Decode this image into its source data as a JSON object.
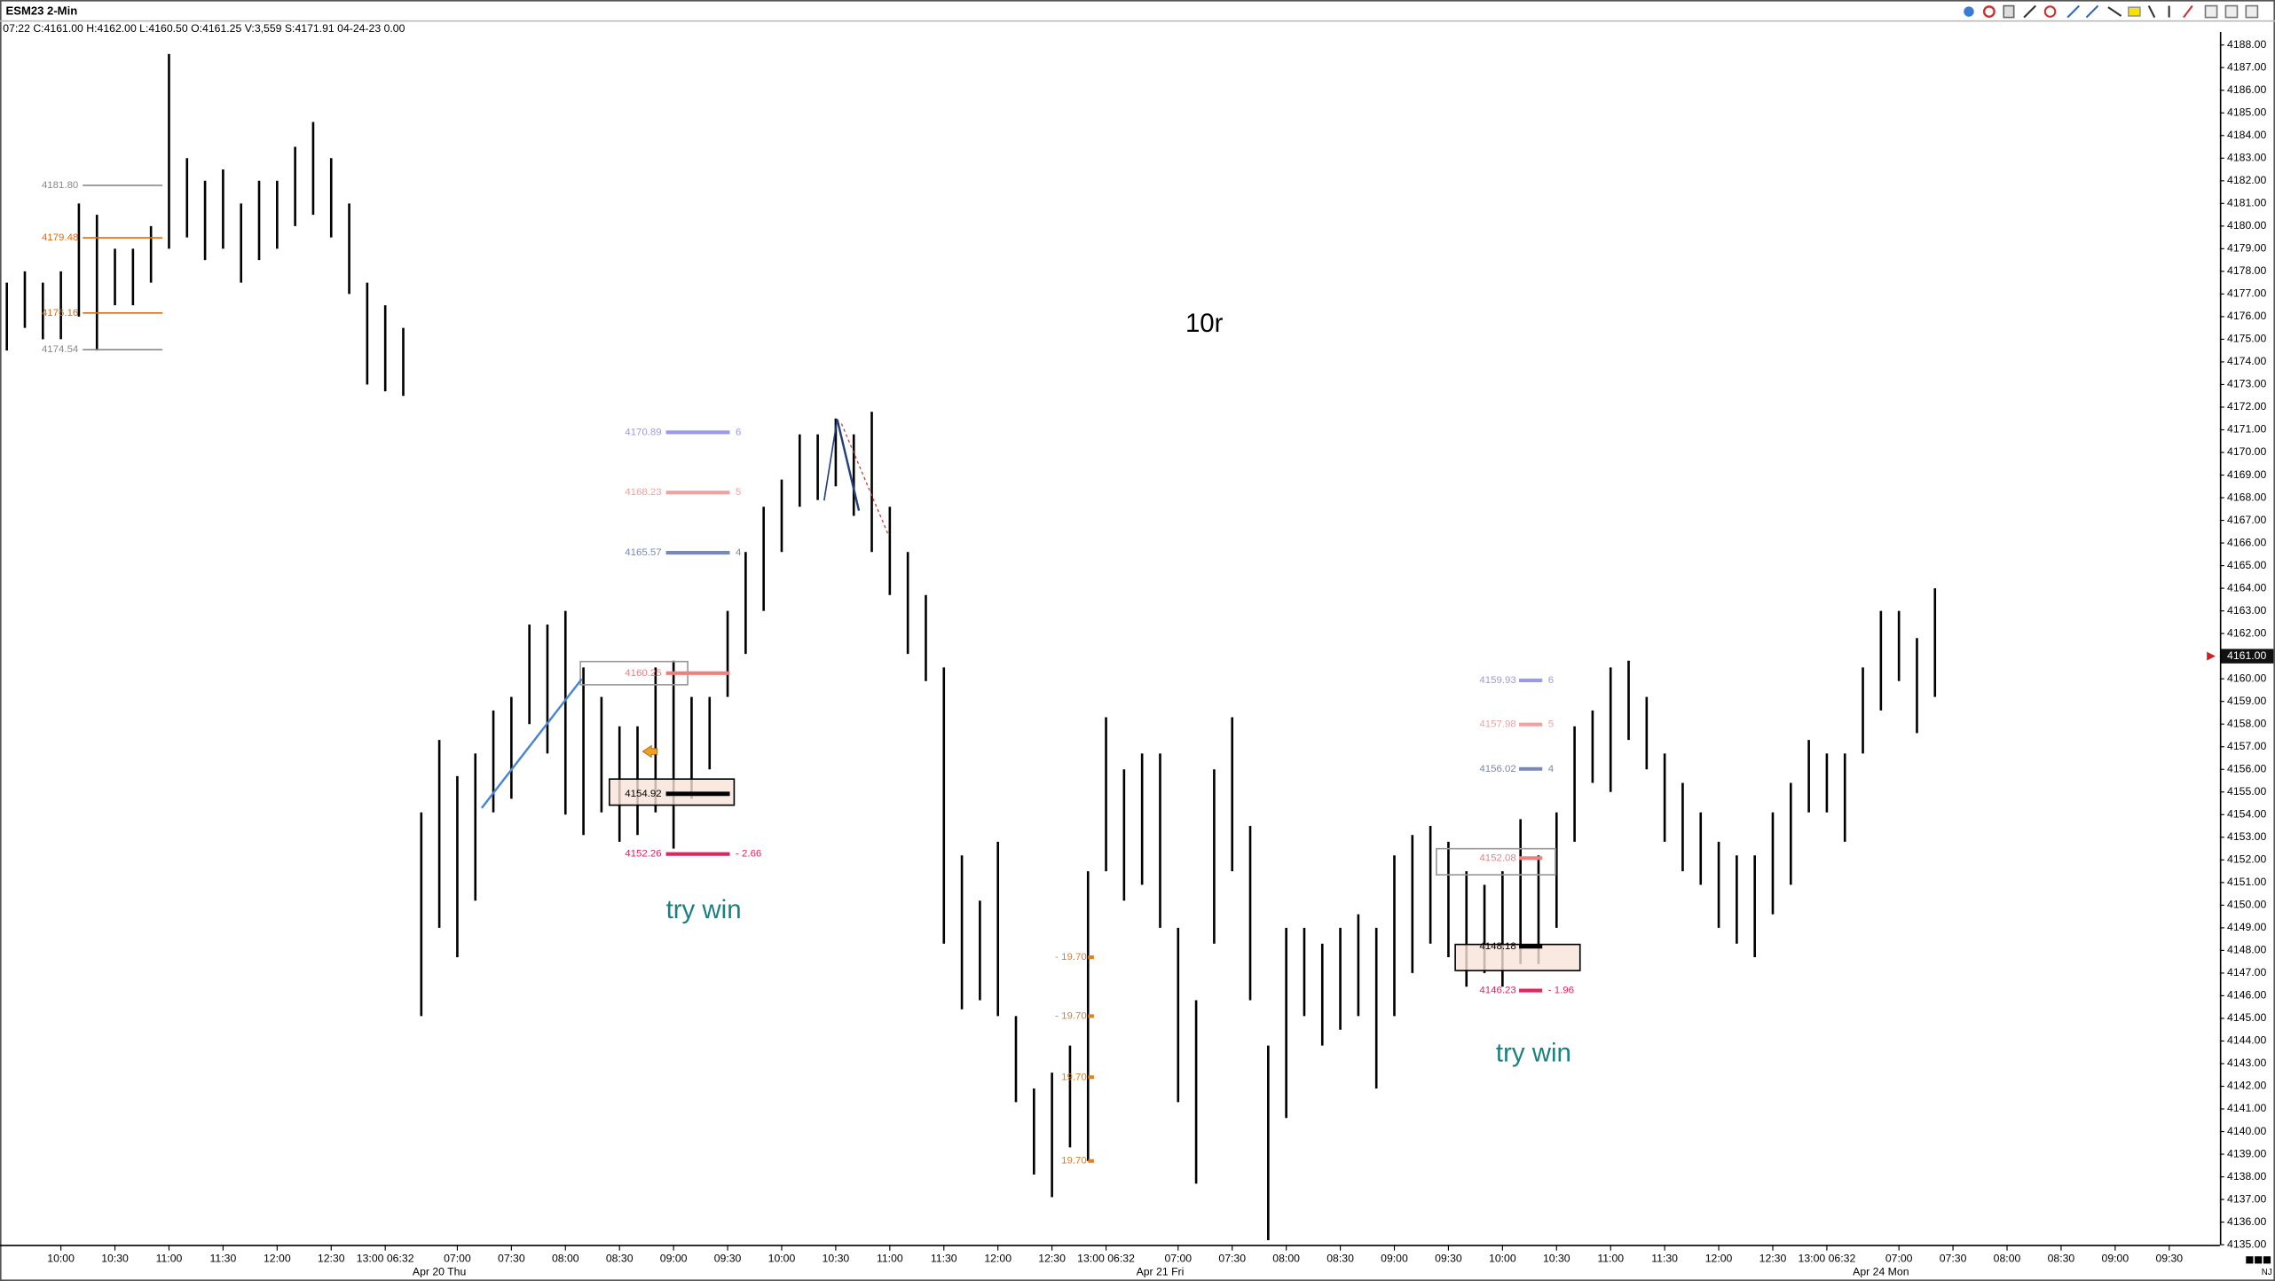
{
  "chart_data": {
    "type": "range_bar",
    "title": "ESM23 2-Min",
    "subtitle": "07:22 C:4161.00 H:4162.00 L:4160.50 O:4161.25 V:3,559 S:4171.91 04-24-23 0.00",
    "categories": [
      null,
      null,
      null,
      "10:00",
      null,
      null,
      "10:30",
      null,
      null,
      "11:00",
      null,
      null,
      "11:30",
      null,
      null,
      "12:00",
      null,
      null,
      "12:30",
      null,
      null,
      "13:00 06:32",
      null,
      null,
      null,
      "07:00",
      null,
      null,
      "07:30",
      null,
      null,
      "08:00",
      null,
      null,
      "08:30",
      null,
      null,
      "09:00",
      null,
      null,
      "09:30",
      null,
      null,
      "10:00",
      null,
      null,
      "10:30",
      null,
      null,
      "11:00",
      null,
      null,
      "11:30",
      null,
      null,
      "12:00",
      null,
      null,
      "12:30",
      null,
      null,
      "13:00 06:32",
      null,
      null,
      null,
      "07:00",
      null,
      null,
      "07:30",
      null,
      null,
      "08:00",
      null,
      null,
      "08:30",
      null,
      null,
      "09:00",
      null,
      null,
      "09:30",
      null,
      null,
      "10:00",
      null,
      null,
      "10:30",
      null,
      null,
      "11:00",
      null,
      null,
      "11:30",
      null,
      null,
      "12:00",
      null,
      null,
      "12:30",
      null,
      null,
      "13:00 06:32",
      null,
      null,
      null,
      "07:00",
      null,
      null,
      "07:30",
      null,
      null,
      "08:00",
      null,
      null,
      "08:30",
      null,
      null,
      "09:00",
      null,
      null,
      "09:30",
      null
    ],
    "day_labels": [
      "Apr 20 Thu",
      "Apr 21 Fri",
      "Apr 24 Mon"
    ],
    "high": [
      4177.5,
      4178,
      4177.5,
      4178,
      4181,
      4180.5,
      4179,
      4179,
      4180,
      4187.6,
      4183,
      4182,
      4182.5,
      4181,
      4182,
      4182,
      4183.5,
      4184.6,
      4183,
      4181,
      4177.5,
      4176.5,
      4175.5,
      4154.1,
      4157.3,
      4155.7,
      4156.7,
      4158.6,
      4159.2,
      4162.4,
      4162.4,
      4163,
      4160.5,
      4159.2,
      4157.9,
      4157.9,
      4160.5,
      4160.8,
      4159.2,
      4159.2,
      4163,
      4165.6,
      4167.6,
      4168.8,
      4170.8,
      4170.8,
      4171.5,
      4170.8,
      4171.8,
      4167.6,
      4165.6,
      4163.7,
      4160.5,
      4152.2,
      4150.2,
      4152.8,
      4145.1,
      4141.9,
      4142.6,
      4143.8,
      4151.5,
      4158.3,
      4156,
      4156.7,
      4156.7,
      4149,
      4145.8,
      4156,
      4158.3,
      4153.5,
      4143.8,
      4149,
      4149,
      4148.3,
      4149,
      4149.6,
      4149,
      4152.2,
      4153.1,
      4153.5,
      4152.8,
      4151.5,
      4150.9,
      4151.5,
      4153.8,
      4152.2,
      4154.1,
      4157.9,
      4158.6,
      4160.5,
      4160.8,
      4159.2,
      4156.7,
      4155.4,
      4154.1,
      4152.8,
      4152.2,
      4152.2,
      4154.1,
      4155.4,
      4157.3,
      4156.7,
      4156.7,
      4160.5,
      4163,
      4163,
      4161.8,
      4164,
      null,
      null,
      null,
      null,
      null,
      null,
      null,
      null,
      null,
      null,
      null,
      null,
      null,
      null
    ],
    "low": [
      4174.5,
      4175.5,
      4175,
      4175,
      4176,
      4174.5,
      4176.5,
      4176.5,
      4177.5,
      4179,
      4179.5,
      4178.5,
      4179,
      4177.5,
      4178.5,
      4179,
      4180,
      4180.5,
      4179.5,
      4177,
      4173,
      4172.7,
      4172.5,
      4145.1,
      4149,
      4147.7,
      4150.2,
      4154.1,
      4154.7,
      4158,
      4156.7,
      4154,
      4153.1,
      4154.1,
      4152.8,
      4153.1,
      4154.1,
      4152.5,
      4154.7,
      4156,
      4159.2,
      4161.1,
      4163,
      4165.6,
      4167.6,
      4167.9,
      4168.5,
      4167.2,
      4165.6,
      4163.7,
      4161.1,
      4159.9,
      4148.3,
      4145.4,
      4145.8,
      4145.1,
      4141.3,
      4138.1,
      4137.1,
      4139.3,
      4138.7,
      4151.5,
      4150.2,
      4150.9,
      4149,
      4141.3,
      4137.7,
      4148.3,
      4151.5,
      4145.8,
      4135.2,
      4140.6,
      4145.1,
      4143.8,
      4144.5,
      4145.1,
      4141.9,
      4145.1,
      4147,
      4148.3,
      4147.7,
      4146.4,
      4147,
      4146.4,
      4147.4,
      4147.4,
      4149,
      4152.8,
      4155.4,
      4155,
      4157.3,
      4156,
      4152.8,
      4151.5,
      4150.9,
      4149,
      4148.3,
      4147.7,
      4149.6,
      4150.9,
      4154.1,
      4154.1,
      4152.8,
      4156.7,
      4158.6,
      4159.9,
      4157.6,
      4159.2,
      null,
      null,
      null,
      null,
      null,
      null,
      null,
      null,
      null,
      null,
      null,
      null,
      null,
      null
    ],
    "color": "#000000",
    "ylim": [
      4135,
      4188
    ],
    "yticks": [
      {
        "value": 4135,
        "label": "4135.00"
      },
      {
        "value": 4136,
        "label": "4136.00"
      },
      {
        "value": 4137,
        "label": "4137.00"
      },
      {
        "value": 4138,
        "label": "4138.00"
      },
      {
        "value": 4139,
        "label": "4139.00"
      },
      {
        "value": 4140,
        "label": "4140.00"
      },
      {
        "value": 4141,
        "label": "4141.00"
      },
      {
        "value": 4142,
        "label": "4142.00"
      },
      {
        "value": 4143,
        "label": "4143.00"
      },
      {
        "value": 4144,
        "label": "4144.00"
      },
      {
        "value": 4145,
        "label": "4145.00"
      },
      {
        "value": 4146,
        "label": "4146.00"
      },
      {
        "value": 4147,
        "label": "4147.00"
      },
      {
        "value": 4148,
        "label": "4148.00"
      },
      {
        "value": 4149,
        "label": "4149.00"
      },
      {
        "value": 4150,
        "label": "4150.00"
      },
      {
        "value": 4151,
        "label": "4151.00"
      },
      {
        "value": 4152,
        "label": "4152.00"
      },
      {
        "value": 4153,
        "label": "4153.00"
      },
      {
        "value": 4154,
        "label": "4154.00"
      },
      {
        "value": 4155,
        "label": "4155.00"
      },
      {
        "value": 4156,
        "label": "4156.00"
      },
      {
        "value": 4157,
        "label": "4157.00"
      },
      {
        "value": 4158,
        "label": "4158.00"
      },
      {
        "value": 4159,
        "label": "4159.00"
      },
      {
        "value": 4160,
        "label": "4160.00"
      },
      {
        "value": 4161,
        "label": "4161.00"
      },
      {
        "value": 4162,
        "label": "4162.00"
      },
      {
        "value": 4163,
        "label": "4163.00"
      },
      {
        "value": 4164,
        "label": "4164.00"
      },
      {
        "value": 4165,
        "label": "4165.00"
      },
      {
        "value": 4166,
        "label": "4166.00"
      },
      {
        "value": 4167,
        "label": "4167.00"
      },
      {
        "value": 4168,
        "label": "4168.00"
      },
      {
        "value": 4169,
        "label": "4169.00"
      },
      {
        "value": 4170,
        "label": "4170.00"
      },
      {
        "value": 4171,
        "label": "4171.00"
      },
      {
        "value": 4172,
        "label": "4172.00"
      },
      {
        "value": 4173,
        "label": "4173.00"
      },
      {
        "value": 4174,
        "label": "4174.00"
      },
      {
        "value": 4175,
        "label": "4175.00"
      },
      {
        "value": 4176,
        "label": "4176.00"
      },
      {
        "value": 4177,
        "label": "4177.00"
      },
      {
        "value": 4178,
        "label": "4178.00"
      },
      {
        "value": 4179,
        "label": "4179.00"
      },
      {
        "value": 4180,
        "label": "4180.00"
      },
      {
        "value": 4181,
        "label": "4181.00"
      },
      {
        "value": 4182,
        "label": "4182.00"
      },
      {
        "value": 4183,
        "label": "4183.00"
      },
      {
        "value": 4184,
        "label": "4184.00"
      },
      {
        "value": 4185,
        "label": "4185.00"
      },
      {
        "value": 4186,
        "label": "4186.00"
      },
      {
        "value": 4187,
        "label": "4187.00"
      },
      {
        "value": 4188,
        "label": "4188.00"
      }
    ],
    "last_price": {
      "value": 4161,
      "label": "4161.00"
    },
    "level_groups": [
      {
        "levels": [
          {
            "price": 4181.8,
            "label": "4181.80",
            "color": "#888888"
          },
          {
            "price": 4179.48,
            "label": "4179.48",
            "color": "#e06a10"
          },
          {
            "price": 4176.16,
            "label": "4176.16",
            "color": "#e06a10"
          },
          {
            "price": 4174.54,
            "label": "4174.54",
            "color": "#888888"
          }
        ]
      },
      {
        "levels": [
          {
            "price": 4170.89,
            "label": "4170.89",
            "tag": "6",
            "color": "#9999ee"
          },
          {
            "price": 4168.23,
            "label": "4168.23",
            "tag": "5",
            "color": "#f4a0a0"
          },
          {
            "price": 4165.57,
            "label": "4165.57",
            "tag": "4",
            "color": "#7788bb"
          },
          {
            "price": 4160.25,
            "label": "4160.25",
            "color": "#f08080"
          },
          {
            "price": 4154.92,
            "label": "4154.92",
            "color": "#000000"
          },
          {
            "price": 4152.26,
            "label": "4152.26",
            "tag": "- 2.66",
            "color": "#e0245e"
          }
        ]
      },
      {
        "levels": [
          {
            "price": 4159.93,
            "label": "4159.93",
            "tag": "6",
            "color": "#9999ee"
          },
          {
            "price": 4157.98,
            "label": "4157.98",
            "tag": "5",
            "color": "#f4a0a0"
          },
          {
            "price": 4156.02,
            "label": "4156.02",
            "tag": "4",
            "color": "#7788bb"
          },
          {
            "price": 4152.08,
            "label": "4152.08",
            "color": "#f08080"
          },
          {
            "price": 4148.18,
            "label": "4148.18",
            "color": "#000000"
          },
          {
            "price": 4146.23,
            "label": "4146.23",
            "tag": "- 1.96",
            "color": "#e0245e"
          }
        ]
      },
      {
        "levels": [
          {
            "price": 4147.7,
            "label": "- 19.70",
            "color": "#e08020"
          },
          {
            "price": 4145.1,
            "label": "- 19.70",
            "color": "#e08020"
          },
          {
            "price": 4142.4,
            "label": "19.70",
            "color": "#e08020"
          },
          {
            "price": 4138.7,
            "label": "19.70",
            "color": "#e08020"
          }
        ]
      }
    ],
    "annotations": [
      "10r",
      "try win",
      "try win"
    ],
    "corner_text": "NJ"
  }
}
